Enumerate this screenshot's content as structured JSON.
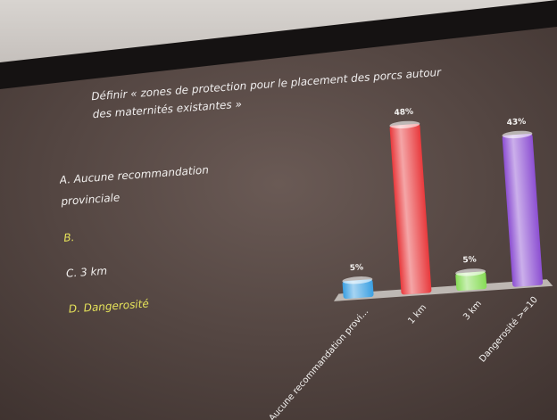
{
  "chart_data": {
    "type": "bar",
    "title": "Définir « zones de protection pour le placement des porcs autour des maternités existantes »",
    "options": [
      {
        "text": "A. Aucune recommandation provinciale",
        "color": "#f2f0ee"
      },
      {
        "text": "B.",
        "color": "#e6e35a"
      },
      {
        "text": "C. 3 km",
        "color": "#f2f0ee"
      },
      {
        "text": "D. Dangerosité",
        "color": "#e6e35a"
      }
    ],
    "categories": [
      "Aucune recommandation provi...",
      "1 km",
      "3 km",
      "Dangerosité >=10"
    ],
    "values": [
      5,
      48,
      5,
      43
    ],
    "value_labels": [
      "5%",
      "48%",
      "5%",
      "43%"
    ],
    "colors": [
      "#3a9fe2",
      "#e8393c",
      "#86dc55",
      "#8c4fd2"
    ]
  }
}
